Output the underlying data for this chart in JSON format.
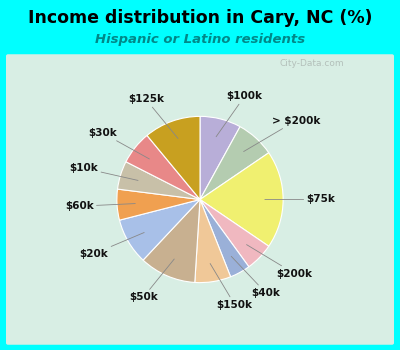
{
  "title": "Income distribution in Cary, NC (%)",
  "subtitle": "Hispanic or Latino residents",
  "watermark": "City-Data.com",
  "background_outer": "#00FFFF",
  "background_inner": "#d8eee4",
  "slices": [
    {
      "label": "$100k",
      "value": 8.0,
      "color": "#b8aed8"
    },
    {
      "label": "> $200k",
      "value": 7.5,
      "color": "#b4ccb0"
    },
    {
      "label": "$75k",
      "value": 19.0,
      "color": "#f0f070"
    },
    {
      "label": "$200k",
      "value": 5.5,
      "color": "#f0b8c0"
    },
    {
      "label": "$40k",
      "value": 4.0,
      "color": "#9ab0d8"
    },
    {
      "label": "$150k",
      "value": 7.0,
      "color": "#f0c898"
    },
    {
      "label": "$50k",
      "value": 11.0,
      "color": "#c8b090"
    },
    {
      "label": "$20k",
      "value": 9.0,
      "color": "#a8c0e8"
    },
    {
      "label": "$60k",
      "value": 6.0,
      "color": "#f0a050"
    },
    {
      "label": "$10k",
      "value": 5.5,
      "color": "#c8c0a8"
    },
    {
      "label": "$30k",
      "value": 6.5,
      "color": "#e88888"
    },
    {
      "label": "$125k",
      "value": 11.0,
      "color": "#c8a020"
    }
  ],
  "label_fontsize": 7.5,
  "title_fontsize": 12.5,
  "subtitle_fontsize": 9.5,
  "title_color": "#000000",
  "subtitle_color": "#008888"
}
